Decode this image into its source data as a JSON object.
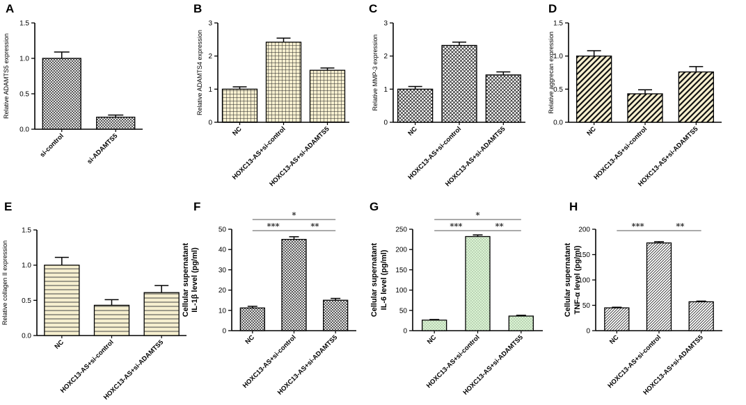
{
  "colors": {
    "cream": "#f6efcf",
    "green": "#d9f4d2",
    "white": "#ffffff",
    "ink": "#000000",
    "sigline": "#555555"
  },
  "chart_data": [
    {
      "panel": "A",
      "type": "bar",
      "ylabel": "Relative ADAMTS5 expression",
      "categories": [
        "si-control",
        "si-ADAMTS5"
      ],
      "values": [
        1.0,
        0.17
      ],
      "errors": [
        0.09,
        0.03
      ],
      "ylim": [
        0,
        1.5
      ],
      "yticks": [
        "0.0",
        "0.5",
        "1.0",
        "1.5"
      ],
      "pattern": "fine-crosshatch",
      "fill": "white",
      "significance": []
    },
    {
      "panel": "B",
      "type": "bar",
      "ylabel": "Relative ADAMTS4 expression",
      "categories": [
        "NC",
        "HOXC13-AS+si-control",
        "HOXC13-AS+si-ADAMTS5"
      ],
      "values": [
        1.0,
        2.42,
        1.57
      ],
      "errors": [
        0.07,
        0.12,
        0.07
      ],
      "ylim": [
        0,
        3
      ],
      "yticks": [
        "0",
        "1",
        "2",
        "3"
      ],
      "pattern": "grid",
      "fill": "cream",
      "significance": []
    },
    {
      "panel": "C",
      "type": "bar",
      "ylabel": "Relative  MMP-3 expression",
      "categories": [
        "NC",
        "HOXC13-AS+si-control",
        "HOXC13-AS+si-ADAMTS5"
      ],
      "values": [
        1.0,
        2.32,
        1.43
      ],
      "errors": [
        0.08,
        0.1,
        0.09
      ],
      "ylim": [
        0,
        3
      ],
      "yticks": [
        "0",
        "1",
        "2",
        "3"
      ],
      "pattern": "crosshatch",
      "fill": "white",
      "significance": []
    },
    {
      "panel": "D",
      "type": "bar",
      "ylabel": "Relative aggrecan expression",
      "categories": [
        "NC",
        "HOXC13-AS+si-control",
        "HOXC13-AS+si-ADAMTS5"
      ],
      "values": [
        1.0,
        0.43,
        0.76
      ],
      "errors": [
        0.08,
        0.06,
        0.08
      ],
      "ylim": [
        0,
        1.5
      ],
      "yticks": [
        "0.0",
        "0.5",
        "1.0",
        "1.5"
      ],
      "pattern": "diagonal-bold",
      "fill": "cream",
      "significance": []
    },
    {
      "panel": "E",
      "type": "bar",
      "ylabel": "Relative collagen II  expression",
      "categories": [
        "NC",
        "HOXC13-AS+si-control",
        "HOXC13-AS+si-ADAMTS5"
      ],
      "values": [
        1.0,
        0.43,
        0.61
      ],
      "errors": [
        0.11,
        0.08,
        0.1
      ],
      "ylim": [
        0,
        1.5
      ],
      "yticks": [
        "0.0",
        "0.5",
        "1.0",
        "1.5"
      ],
      "pattern": "horizontal",
      "fill": "cream",
      "significance": []
    },
    {
      "panel": "F",
      "type": "bar",
      "ylabel": "Cellular supernatant",
      "ylabel2": "IL-1β level (pg/ml)",
      "categories": [
        "NC",
        "HOXC13-AS+si-control",
        "HOXC13-AS+si-ADAMTS5"
      ],
      "values": [
        11.2,
        45.0,
        15.0
      ],
      "errors": [
        0.8,
        1.3,
        0.9
      ],
      "ylim": [
        0,
        50
      ],
      "yticks": [
        "0",
        "10",
        "20",
        "30",
        "40",
        "50"
      ],
      "pattern": "fine-crosshatch",
      "fill": "white",
      "significance": [
        {
          "from": 0,
          "to": 2,
          "label": "*",
          "level": 0
        },
        {
          "from": 0,
          "to": 1,
          "label": "***",
          "level": 1
        },
        {
          "from": 1,
          "to": 2,
          "label": "**",
          "level": 1
        }
      ]
    },
    {
      "panel": "G",
      "type": "bar",
      "ylabel": "Cellular supernatant",
      "ylabel2": "IL-6 level (pg/ml)",
      "categories": [
        "NC",
        "HOXC13-AS+si-control",
        "HOXC13-AS+si-ADAMTS5"
      ],
      "values": [
        26,
        232,
        36
      ],
      "errors": [
        1.5,
        4,
        2
      ],
      "ylim": [
        0,
        250
      ],
      "yticks": [
        "0",
        "50",
        "100",
        "150",
        "200",
        "250"
      ],
      "pattern": "dots",
      "fill": "green",
      "significance": [
        {
          "from": 0,
          "to": 2,
          "label": "*",
          "level": 0
        },
        {
          "from": 0,
          "to": 1,
          "label": "***",
          "level": 1
        },
        {
          "from": 1,
          "to": 2,
          "label": "**",
          "level": 1
        }
      ]
    },
    {
      "panel": "H",
      "type": "bar",
      "ylabel": "Cellular supernatant",
      "ylabel2": "TNF-α level (pg/ml)",
      "categories": [
        "NC",
        "HOXC13-AS+si-control",
        "HOXC13-AS+si-ADAMTS5"
      ],
      "values": [
        45,
        173,
        57
      ],
      "errors": [
        1.2,
        2.5,
        1.3
      ],
      "ylim": [
        0,
        200
      ],
      "yticks": [
        "0",
        "50",
        "100",
        "150",
        "200"
      ],
      "pattern": "diagonal-fine",
      "fill": "white",
      "significance": [
        {
          "from": 0,
          "to": 1,
          "label": "***",
          "level": 1
        },
        {
          "from": 1,
          "to": 2,
          "label": "**",
          "level": 1
        }
      ]
    }
  ]
}
